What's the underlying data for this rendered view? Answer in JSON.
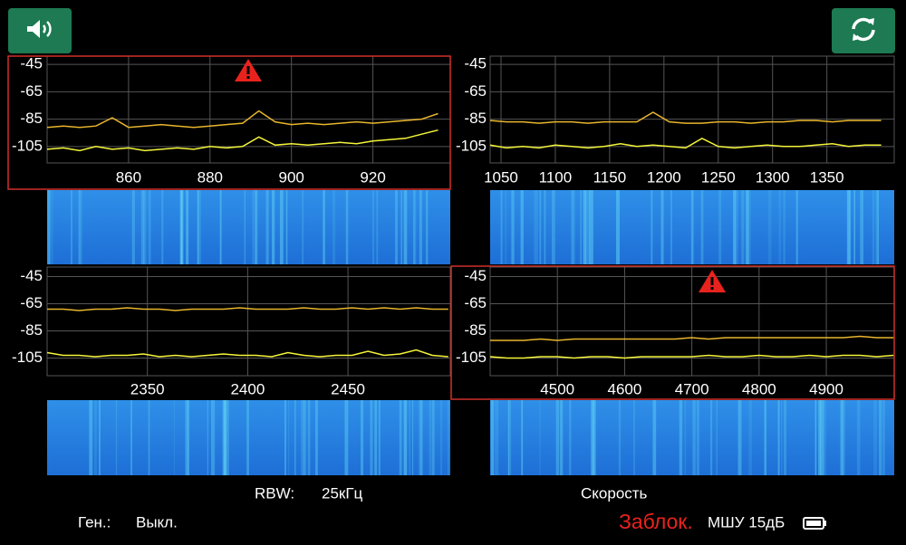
{
  "chart_data": [
    {
      "type": "line",
      "alert": true,
      "grid": true,
      "xlim": [
        840,
        939
      ],
      "xticks": [
        860,
        880,
        900,
        920
      ],
      "ylim": [
        -117,
        -39
      ],
      "yticks": [
        -45,
        -65,
        -85,
        -105
      ],
      "x": [
        840,
        844,
        848,
        852,
        856,
        860,
        864,
        868,
        872,
        876,
        880,
        884,
        888,
        892,
        896,
        900,
        904,
        908,
        912,
        916,
        920,
        924,
        928,
        932,
        936
      ],
      "series": [
        {
          "color": "#e8b52c",
          "values": [
            -91,
            -90,
            -91,
            -90,
            -84,
            -91,
            -90,
            -89,
            -90,
            -91,
            -90,
            -89,
            -88,
            -79,
            -87,
            -89,
            -88,
            -89,
            -88,
            -87,
            -88,
            -87,
            -86,
            -85,
            -81
          ]
        },
        {
          "color": "#f5f53a",
          "values": [
            -107,
            -106,
            -108,
            -105,
            -107,
            -106,
            -108,
            -107,
            -106,
            -107,
            -105,
            -106,
            -105,
            -98,
            -104,
            -103,
            -104,
            -103,
            -102,
            -103,
            -101,
            -100,
            -99,
            -96,
            -93
          ]
        }
      ]
    },
    {
      "type": "line",
      "alert": false,
      "grid": true,
      "xlim": [
        1040,
        1412
      ],
      "xticks": [
        1050,
        1100,
        1150,
        1200,
        1250,
        1300,
        1350
      ],
      "ylim": [
        -117,
        -39
      ],
      "yticks": [
        -45,
        -65,
        -85,
        -105
      ],
      "x": [
        1040,
        1055,
        1070,
        1085,
        1100,
        1115,
        1130,
        1145,
        1160,
        1175,
        1190,
        1205,
        1220,
        1235,
        1250,
        1265,
        1280,
        1295,
        1310,
        1325,
        1340,
        1355,
        1370,
        1385,
        1400
      ],
      "series": [
        {
          "color": "#e8b52c",
          "values": [
            -86,
            -87,
            -87,
            -88,
            -87,
            -87,
            -88,
            -87,
            -87,
            -87,
            -80,
            -87,
            -88,
            -88,
            -87,
            -87,
            -88,
            -87,
            -87,
            -86,
            -86,
            -87,
            -86,
            -86,
            -86
          ]
        },
        {
          "color": "#f5f53a",
          "values": [
            -104,
            -106,
            -105,
            -106,
            -104,
            -105,
            -106,
            -105,
            -103,
            -105,
            -104,
            -105,
            -106,
            -99,
            -105,
            -106,
            -105,
            -104,
            -105,
            -105,
            -104,
            -103,
            -105,
            -104,
            -104
          ]
        }
      ]
    },
    {
      "type": "line",
      "alert": false,
      "grid": true,
      "xlim": [
        2300,
        2501
      ],
      "xticks": [
        2350,
        2400,
        2450
      ],
      "ylim": [
        -118,
        -38
      ],
      "yticks": [
        -45,
        -65,
        -85,
        -105
      ],
      "x": [
        2300,
        2308,
        2316,
        2324,
        2332,
        2340,
        2348,
        2356,
        2364,
        2372,
        2380,
        2388,
        2396,
        2404,
        2412,
        2420,
        2428,
        2436,
        2444,
        2452,
        2460,
        2468,
        2476,
        2484,
        2492,
        2500
      ],
      "series": [
        {
          "color": "#e8b52c",
          "values": [
            -69,
            -69,
            -70,
            -69,
            -69,
            -68,
            -69,
            -69,
            -70,
            -69,
            -69,
            -69,
            -68,
            -69,
            -69,
            -69,
            -68,
            -69,
            -69,
            -68,
            -69,
            -68,
            -69,
            -68,
            -69,
            -69
          ]
        },
        {
          "color": "#f5f53a",
          "values": [
            -101,
            -103,
            -103,
            -104,
            -103,
            -103,
            -102,
            -104,
            -103,
            -104,
            -103,
            -102,
            -103,
            -103,
            -104,
            -101,
            -103,
            -104,
            -103,
            -103,
            -100,
            -103,
            -102,
            -99,
            -103,
            -104
          ]
        }
      ]
    },
    {
      "type": "line",
      "alert": true,
      "grid": true,
      "xlim": [
        4400,
        5001
      ],
      "xticks": [
        4500,
        4600,
        4700,
        4800,
        4900
      ],
      "ylim": [
        -118,
        -38
      ],
      "yticks": [
        -45,
        -65,
        -85,
        -105
      ],
      "x": [
        4400,
        4425,
        4450,
        4475,
        4500,
        4525,
        4550,
        4575,
        4600,
        4625,
        4650,
        4675,
        4700,
        4725,
        4750,
        4775,
        4800,
        4825,
        4850,
        4875,
        4900,
        4925,
        4950,
        4975,
        5000
      ],
      "series": [
        {
          "color": "#e8b52c",
          "values": [
            -92,
            -92,
            -92,
            -91,
            -92,
            -91,
            -91,
            -91,
            -91,
            -91,
            -91,
            -91,
            -90,
            -91,
            -90,
            -90,
            -90,
            -90,
            -90,
            -90,
            -90,
            -90,
            -89,
            -90,
            -90
          ]
        },
        {
          "color": "#f5f53a",
          "values": [
            -104,
            -105,
            -105,
            -104,
            -104,
            -105,
            -104,
            -104,
            -105,
            -104,
            -104,
            -104,
            -104,
            -103,
            -104,
            -104,
            -103,
            -104,
            -104,
            -103,
            -104,
            -103,
            -103,
            -104,
            -103
          ]
        }
      ]
    }
  ],
  "footer": {
    "rbw_label": "RBW:",
    "rbw_value": "25кГц",
    "speed": "Скорость",
    "gen_label": "Ген.:",
    "gen_value": "Выкл.",
    "locked": "Заблок.",
    "lna": "МШУ 15дБ"
  }
}
